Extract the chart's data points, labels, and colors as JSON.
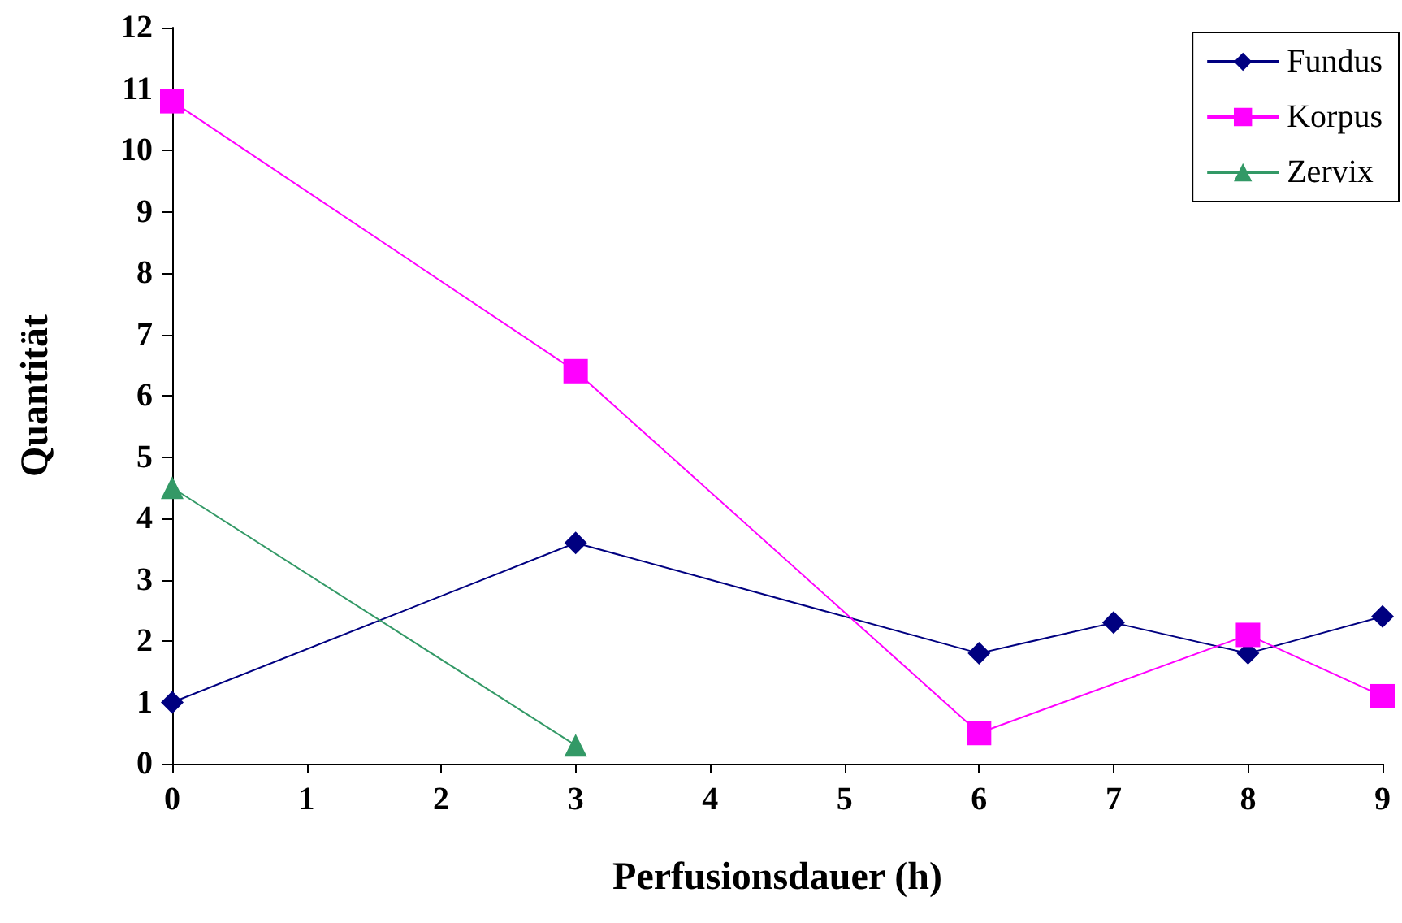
{
  "chart_data": {
    "type": "line",
    "xlabel": "Perfusionsdauer (h)",
    "ylabel": "Quantität",
    "xlim": [
      0,
      9
    ],
    "xticks": [
      0,
      1,
      2,
      3,
      4,
      5,
      6,
      7,
      8,
      9
    ],
    "ylim": [
      0,
      12
    ],
    "yticks": [
      0,
      1,
      2,
      3,
      4,
      5,
      6,
      7,
      8,
      9,
      10,
      11,
      12
    ],
    "grid": false,
    "legend": "top right",
    "line_style": "solid",
    "series": [
      {
        "name": "Fundus",
        "color": "#000080",
        "marker": "diamond",
        "x": [
          0,
          3,
          6,
          7,
          8,
          9
        ],
        "values": [
          1,
          3.6,
          1.8,
          2.3,
          1.8,
          2.4
        ]
      },
      {
        "name": "Korpus",
        "color": "#ff00ff",
        "marker": "square",
        "x": [
          0,
          3,
          6,
          8,
          9
        ],
        "values": [
          10.8,
          6.4,
          0.5,
          2.1,
          1.1
        ]
      },
      {
        "name": "Zervix",
        "color": "#339966",
        "marker": "triangle",
        "x": [
          0,
          3
        ],
        "values": [
          4.5,
          0.3
        ]
      }
    ]
  }
}
